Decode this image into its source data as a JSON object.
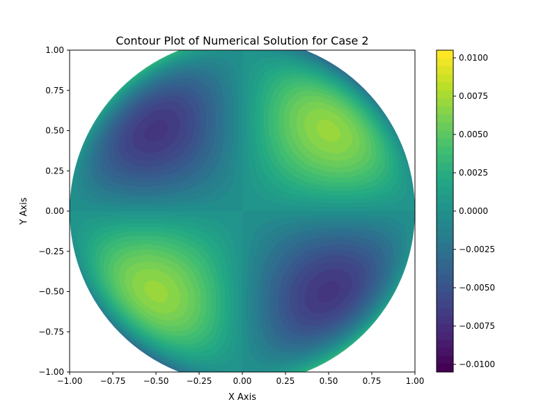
{
  "chart_data": {
    "type": "heatmap",
    "subtype": "filled-contour",
    "title": "Contour Plot of Numerical Solution for Case 2",
    "xlabel": "X Axis",
    "ylabel": "Y Axis",
    "xlim": [
      -1.0,
      1.0
    ],
    "ylim": [
      -1.0,
      1.0
    ],
    "x_ticks": [
      "−1.00",
      "−0.75",
      "−0.50",
      "−0.25",
      "0.00",
      "0.25",
      "0.50",
      "0.75",
      "1.00"
    ],
    "y_ticks": [
      "−1.00",
      "−0.75",
      "−0.50",
      "−0.25",
      "0.00",
      "0.25",
      "0.50",
      "0.75",
      "1.00"
    ],
    "x_tick_values": [
      -1.0,
      -0.75,
      -0.5,
      -0.25,
      0.0,
      0.25,
      0.5,
      0.75,
      1.0
    ],
    "y_tick_values": [
      -1.0,
      -0.75,
      -0.5,
      -0.25,
      0.0,
      0.25,
      0.5,
      0.75,
      1.0
    ],
    "domain": "unit disk",
    "colormap": "viridis",
    "colorbar": {
      "min": -0.0105,
      "max": 0.0105,
      "ticks": [
        "0.0100",
        "0.0075",
        "0.0050",
        "0.0025",
        "0.0000",
        "−0.0025",
        "−0.0050",
        "−0.0075",
        "−0.0100"
      ],
      "tick_values": [
        0.01,
        0.0075,
        0.005,
        0.0025,
        0.0,
        -0.0025,
        -0.005,
        -0.0075,
        -0.01
      ]
    },
    "extrema": [
      {
        "x": 0.5,
        "y": 0.5,
        "value": 0.0105
      },
      {
        "x": -0.5,
        "y": -0.5,
        "value": 0.0105
      },
      {
        "x": -0.5,
        "y": 0.5,
        "value": -0.0105
      },
      {
        "x": 0.5,
        "y": -0.5,
        "value": -0.0105
      }
    ],
    "grid": false
  }
}
